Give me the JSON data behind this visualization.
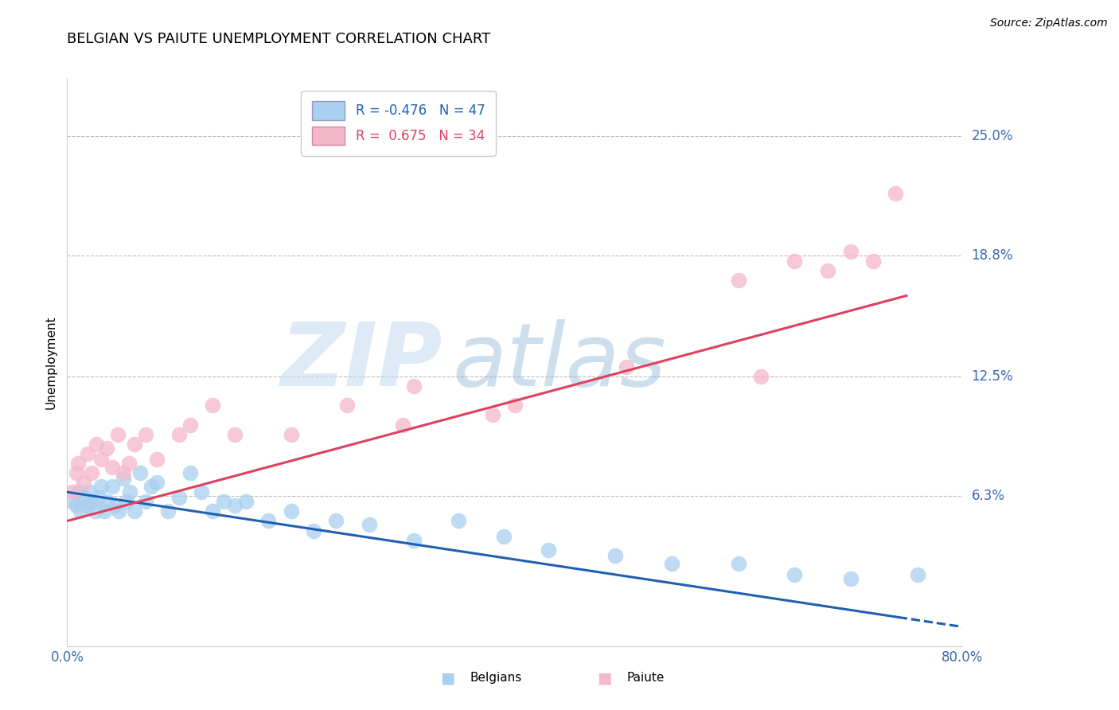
{
  "title": "BELGIAN VS PAIUTE UNEMPLOYMENT CORRELATION CHART",
  "source": "Source: ZipAtlas.com",
  "ylabel": "Unemployment",
  "y_ticks": [
    0.0,
    0.063,
    0.125,
    0.188,
    0.25
  ],
  "y_tick_labels": [
    "",
    "6.3%",
    "12.5%",
    "18.8%",
    "25.0%"
  ],
  "xlim": [
    0.0,
    0.8
  ],
  "ylim": [
    -0.015,
    0.28
  ],
  "belgian_R": -0.476,
  "belgian_N": 47,
  "paiute_R": 0.675,
  "paiute_N": 34,
  "belgian_color": "#a8d0ef",
  "paiute_color": "#f5b8cb",
  "belgian_line_color": "#2060b0",
  "paiute_line_color": "#e04060",
  "background_color": "#ffffff",
  "grid_color": "#bbbbbb",
  "belgian_scatter_x": [
    0.005,
    0.008,
    0.01,
    0.012,
    0.015,
    0.018,
    0.02,
    0.022,
    0.025,
    0.028,
    0.03,
    0.033,
    0.036,
    0.04,
    0.043,
    0.046,
    0.05,
    0.053,
    0.056,
    0.06,
    0.065,
    0.07,
    0.075,
    0.08,
    0.09,
    0.1,
    0.11,
    0.12,
    0.13,
    0.14,
    0.15,
    0.16,
    0.18,
    0.2,
    0.22,
    0.24,
    0.27,
    0.31,
    0.35,
    0.39,
    0.43,
    0.49,
    0.54,
    0.6,
    0.65,
    0.7,
    0.76
  ],
  "belgian_scatter_y": [
    0.06,
    0.058,
    0.065,
    0.055,
    0.062,
    0.058,
    0.065,
    0.06,
    0.055,
    0.062,
    0.068,
    0.055,
    0.06,
    0.068,
    0.058,
    0.055,
    0.072,
    0.06,
    0.065,
    0.055,
    0.075,
    0.06,
    0.068,
    0.07,
    0.055,
    0.062,
    0.075,
    0.065,
    0.055,
    0.06,
    0.058,
    0.06,
    0.05,
    0.055,
    0.045,
    0.05,
    0.048,
    0.04,
    0.05,
    0.042,
    0.035,
    0.032,
    0.028,
    0.028,
    0.022,
    0.02,
    0.022
  ],
  "paiute_scatter_x": [
    0.005,
    0.008,
    0.01,
    0.015,
    0.018,
    0.022,
    0.026,
    0.03,
    0.035,
    0.04,
    0.045,
    0.05,
    0.055,
    0.06,
    0.07,
    0.08,
    0.1,
    0.11,
    0.13,
    0.15,
    0.2,
    0.25,
    0.3,
    0.31,
    0.38,
    0.4,
    0.5,
    0.6,
    0.62,
    0.65,
    0.68,
    0.7,
    0.72,
    0.74
  ],
  "paiute_scatter_y": [
    0.065,
    0.075,
    0.08,
    0.07,
    0.085,
    0.075,
    0.09,
    0.082,
    0.088,
    0.078,
    0.095,
    0.075,
    0.08,
    0.09,
    0.095,
    0.082,
    0.095,
    0.1,
    0.11,
    0.095,
    0.095,
    0.11,
    0.1,
    0.12,
    0.105,
    0.11,
    0.13,
    0.175,
    0.125,
    0.185,
    0.18,
    0.19,
    0.185,
    0.22
  ]
}
